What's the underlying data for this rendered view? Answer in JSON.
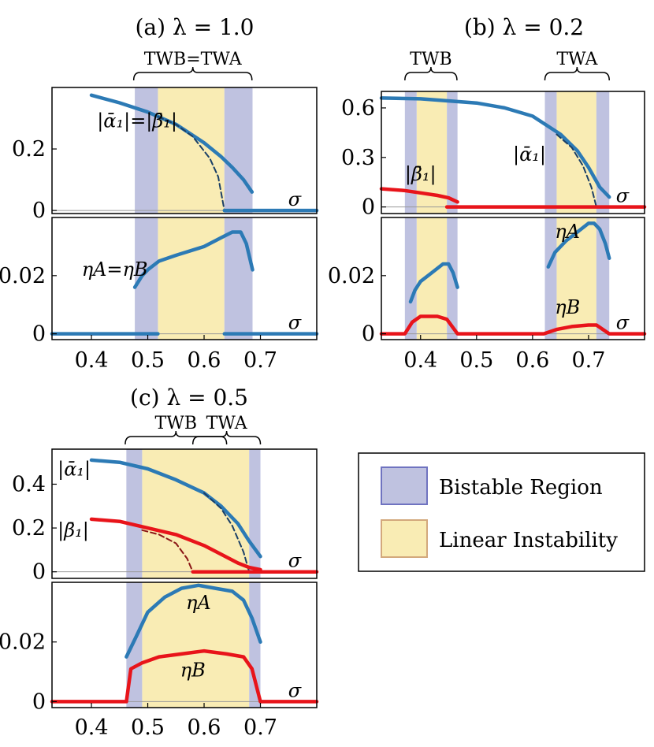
{
  "figure": {
    "legend": {
      "bistable_label": "Bistable Region",
      "bistable_color": "#bfc2e0",
      "linear_label": "Linear Instability",
      "linear_color": "#f9ecb4"
    }
  },
  "chart_data": [
    {
      "id": "a",
      "type": "line",
      "title": "(a) λ = 1.0",
      "xlabel": "σ",
      "xlim": [
        0.33,
        0.8
      ],
      "xticks": [
        "0.4",
        "0.5",
        "0.6",
        "0.7"
      ],
      "brackets": [
        {
          "label": "TWB=TWA",
          "x0": 0.475,
          "x1": 0.685
        }
      ],
      "top": {
        "ylim": [
          -0.01,
          0.4
        ],
        "yticks": [
          "0",
          "0.2"
        ],
        "yticks_values": [
          0,
          0.2
        ],
        "bistable": [
          [
            0.477,
            0.518
          ],
          [
            0.636,
            0.686
          ]
        ],
        "linear": [
          [
            0.518,
            0.636
          ]
        ],
        "annotations": [
          "|ᾱ₁|=|β̄₁|"
        ],
        "series": [
          {
            "name": "|ᾱ₁|=|β̄₁|",
            "color": "#2c7ab5",
            "x": [
              0.4,
              0.45,
              0.5,
              0.55,
              0.6,
              0.63,
              0.65,
              0.67,
              0.685
            ],
            "y": [
              0.375,
              0.35,
              0.32,
              0.28,
              0.22,
              0.175,
              0.14,
              0.1,
              0.06
            ]
          },
          {
            "name": "unstable branch",
            "color": "#1a3f66",
            "dashed": true,
            "x": [
              0.518,
              0.55,
              0.58,
              0.61,
              0.625,
              0.636
            ],
            "y": [
              0.305,
              0.28,
              0.24,
              0.17,
              0.11,
              0.0
            ]
          },
          {
            "name": "zero branch",
            "color": "#2c7ab5",
            "x": [
              0.636,
              0.8
            ],
            "y": [
              0.0,
              0.0
            ]
          }
        ]
      },
      "bottom": {
        "ylim": [
          -0.002,
          0.04
        ],
        "yticks": [
          "0",
          "0.02"
        ],
        "yticks_values": [
          0,
          0.02
        ],
        "bistable": [
          [
            0.477,
            0.518
          ],
          [
            0.636,
            0.686
          ]
        ],
        "linear": [
          [
            0.518,
            0.636
          ]
        ],
        "annotations": [
          "ηA=ηB"
        ],
        "series": [
          {
            "name": "ηA=ηB",
            "color": "#2c7ab5",
            "x": [
              0.477,
              0.49,
              0.5,
              0.52,
              0.55,
              0.6,
              0.63,
              0.65,
              0.665,
              0.675,
              0.686
            ],
            "y": [
              0.016,
              0.02,
              0.022,
              0.025,
              0.027,
              0.03,
              0.033,
              0.035,
              0.035,
              0.031,
              0.022
            ]
          },
          {
            "name": "zero branch",
            "color": "#2c7ab5",
            "x": [
              0.33,
              0.518
            ],
            "y": [
              0.0,
              0.0
            ]
          },
          {
            "name": "zero branch 2",
            "color": "#2c7ab5",
            "x": [
              0.636,
              0.8
            ],
            "y": [
              0.0,
              0.0
            ]
          }
        ]
      }
    },
    {
      "id": "b",
      "type": "line",
      "title": "(b) λ = 0.2",
      "xlabel": "σ",
      "xlim": [
        0.33,
        0.8
      ],
      "xticks": [
        "0.4",
        "0.5",
        "0.6",
        "0.7"
      ],
      "brackets": [
        {
          "label": "TWB",
          "x0": 0.372,
          "x1": 0.465
        },
        {
          "label": "TWA",
          "x0": 0.622,
          "x1": 0.737
        }
      ],
      "top": {
        "ylim": [
          -0.04,
          0.7
        ],
        "yticks": [
          "0",
          "0.3",
          "0.6"
        ],
        "yticks_values": [
          0,
          0.3,
          0.6
        ],
        "bistable": [
          [
            0.372,
            0.393
          ],
          [
            0.447,
            0.466
          ],
          [
            0.622,
            0.643
          ],
          [
            0.714,
            0.737
          ]
        ],
        "linear": [
          [
            0.393,
            0.447
          ],
          [
            0.643,
            0.714
          ]
        ],
        "annotations": [
          "|ᾱ₁|",
          "|β̄₁|"
        ],
        "series": [
          {
            "name": "|ᾱ₁|",
            "color": "#2c7ab5",
            "x": [
              0.33,
              0.4,
              0.5,
              0.55,
              0.6,
              0.65,
              0.68,
              0.7,
              0.72,
              0.737
            ],
            "y": [
              0.66,
              0.655,
              0.63,
              0.6,
              0.55,
              0.44,
              0.34,
              0.24,
              0.12,
              0.06
            ]
          },
          {
            "name": "|ᾱ₁| unstable",
            "color": "#1a3f66",
            "dashed": true,
            "x": [
              0.643,
              0.67,
              0.69,
              0.705,
              0.714
            ],
            "y": [
              0.44,
              0.36,
              0.25,
              0.12,
              0.0
            ]
          },
          {
            "name": "|β̄₁|",
            "color": "#e8141a",
            "x": [
              0.33,
              0.37,
              0.4,
              0.43,
              0.45,
              0.466
            ],
            "y": [
              0.11,
              0.1,
              0.085,
              0.07,
              0.055,
              0.03
            ]
          },
          {
            "name": "zero",
            "color": "#e8141a",
            "x": [
              0.447,
              0.8
            ],
            "y": [
              0.0,
              0.0
            ]
          }
        ]
      },
      "bottom": {
        "ylim": [
          -0.002,
          0.04
        ],
        "yticks": [
          "0",
          "0.02"
        ],
        "yticks_values": [
          0,
          0.02
        ],
        "bistable": [
          [
            0.372,
            0.393
          ],
          [
            0.447,
            0.466
          ],
          [
            0.622,
            0.643
          ],
          [
            0.714,
            0.737
          ]
        ],
        "linear": [
          [
            0.393,
            0.447
          ],
          [
            0.643,
            0.714
          ]
        ],
        "annotations": [
          "ηA",
          "ηB"
        ],
        "series": [
          {
            "name": "ηA (TWB)",
            "color": "#2c7ab5",
            "x": [
              0.382,
              0.39,
              0.4,
              0.42,
              0.44,
              0.45,
              0.458,
              0.466
            ],
            "y": [
              0.011,
              0.015,
              0.018,
              0.021,
              0.024,
              0.024,
              0.021,
              0.016
            ]
          },
          {
            "name": "ηA (TWA)",
            "color": "#2c7ab5",
            "x": [
              0.628,
              0.64,
              0.66,
              0.68,
              0.7,
              0.71,
              0.72,
              0.73,
              0.737
            ],
            "y": [
              0.023,
              0.028,
              0.032,
              0.035,
              0.038,
              0.038,
              0.036,
              0.031,
              0.026
            ]
          },
          {
            "name": "ηB",
            "color": "#e8141a",
            "x": [
              0.33,
              0.372,
              0.385,
              0.4,
              0.43,
              0.447,
              0.466,
              0.62,
              0.643,
              0.67,
              0.7,
              0.714,
              0.737,
              0.8
            ],
            "y": [
              0.0,
              0.0,
              0.004,
              0.006,
              0.006,
              0.005,
              0.0,
              0.0,
              0.0015,
              0.0025,
              0.003,
              0.003,
              0.0,
              0.0
            ]
          }
        ]
      }
    },
    {
      "id": "c",
      "type": "line",
      "title": "(c) λ = 0.5",
      "xlabel": "σ",
      "xlim": [
        0.33,
        0.8
      ],
      "xticks": [
        "0.4",
        "0.5",
        "0.6",
        "0.7"
      ],
      "brackets": [
        {
          "label": "TWB",
          "x0": 0.46,
          "x1": 0.64
        },
        {
          "label": "TWA",
          "x0": 0.58,
          "x1": 0.7
        }
      ],
      "top": {
        "ylim": [
          -0.03,
          0.56
        ],
        "yticks": [
          "0",
          "0.2",
          "0.4"
        ],
        "yticks_values": [
          0,
          0.2,
          0.4
        ],
        "bistable": [
          [
            0.462,
            0.49
          ],
          [
            0.68,
            0.7
          ]
        ],
        "linear": [
          [
            0.49,
            0.68
          ]
        ],
        "annotations": [
          "|ᾱ₁|",
          "|β̄₁|"
        ],
        "series": [
          {
            "name": "|ᾱ₁|",
            "color": "#2c7ab5",
            "x": [
              0.4,
              0.45,
              0.5,
              0.55,
              0.6,
              0.63,
              0.66,
              0.68,
              0.7
            ],
            "y": [
              0.51,
              0.5,
              0.47,
              0.42,
              0.36,
              0.3,
              0.22,
              0.14,
              0.07
            ]
          },
          {
            "name": "|ᾱ₁| unstable",
            "color": "#1a3f66",
            "dashed": true,
            "x": [
              0.6,
              0.63,
              0.65,
              0.67,
              0.68
            ],
            "y": [
              0.36,
              0.29,
              0.21,
              0.09,
              0.0
            ]
          },
          {
            "name": "|β̄₁|",
            "color": "#e8141a",
            "x": [
              0.4,
              0.45,
              0.5,
              0.55,
              0.6,
              0.63,
              0.66,
              0.68,
              0.7
            ],
            "y": [
              0.24,
              0.23,
              0.2,
              0.17,
              0.12,
              0.08,
              0.04,
              0.02,
              0.01
            ]
          },
          {
            "name": "|β̄₁| unstable",
            "color": "#8b1616",
            "dashed": true,
            "x": [
              0.49,
              0.52,
              0.55,
              0.57,
              0.58
            ],
            "y": [
              0.19,
              0.17,
              0.13,
              0.06,
              0.0
            ]
          },
          {
            "name": "zero",
            "color": "#e8141a",
            "x": [
              0.58,
              0.8
            ],
            "y": [
              0.0,
              0.0
            ]
          }
        ]
      },
      "bottom": {
        "ylim": [
          -0.002,
          0.04
        ],
        "yticks": [
          "0",
          "0.02"
        ],
        "yticks_values": [
          0,
          0.02
        ],
        "bistable": [
          [
            0.462,
            0.49
          ],
          [
            0.68,
            0.7
          ]
        ],
        "linear": [
          [
            0.49,
            0.68
          ]
        ],
        "annotations": [
          "ηA",
          "ηB"
        ],
        "series": [
          {
            "name": "ηA",
            "color": "#2c7ab5",
            "x": [
              0.462,
              0.48,
              0.5,
              0.53,
              0.56,
              0.59,
              0.62,
              0.65,
              0.67,
              0.685,
              0.7
            ],
            "y": [
              0.015,
              0.022,
              0.03,
              0.035,
              0.038,
              0.039,
              0.038,
              0.037,
              0.034,
              0.028,
              0.02
            ]
          },
          {
            "name": "ηB",
            "color": "#e8141a",
            "x": [
              0.33,
              0.462,
              0.47,
              0.49,
              0.52,
              0.56,
              0.6,
              0.64,
              0.67,
              0.685,
              0.7,
              0.8
            ],
            "y": [
              0.0,
              0.0,
              0.011,
              0.013,
              0.015,
              0.016,
              0.017,
              0.016,
              0.015,
              0.011,
              0.0,
              0.0
            ]
          }
        ]
      }
    }
  ]
}
